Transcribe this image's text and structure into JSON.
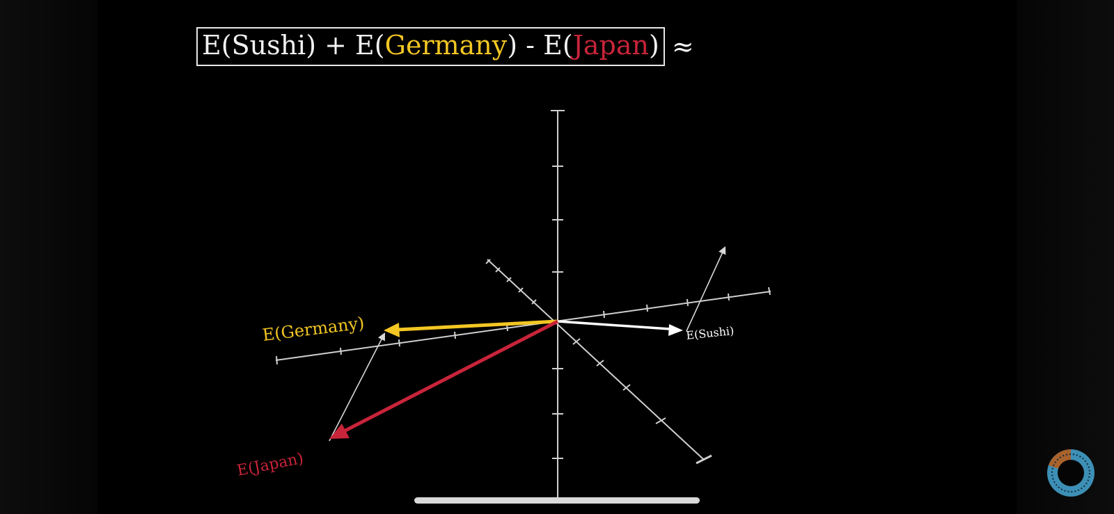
{
  "formula": {
    "sushi_term": "E(Sushi)",
    "plus": " + ",
    "germany_prefix": "E(",
    "germany_word": "Germany",
    "germany_suffix": ")",
    "minus": " - ",
    "japan_prefix": "E(",
    "japan_word": "Japan",
    "japan_suffix": ")",
    "approx": "≈"
  },
  "vectors": {
    "germany": {
      "label": "E(Germany)",
      "color": "#f3c623"
    },
    "japan": {
      "label": "E(Japan)",
      "color": "#c8243a"
    },
    "sushi": {
      "label": "E(Sushi)",
      "color": "#ffffff"
    }
  },
  "colors": {
    "background": "#000000",
    "axes": "#d0d0d0",
    "helper_arrow": "#d8d8d8"
  },
  "icons": {
    "channel_avatar": "3b1b-pi-eye-icon"
  }
}
